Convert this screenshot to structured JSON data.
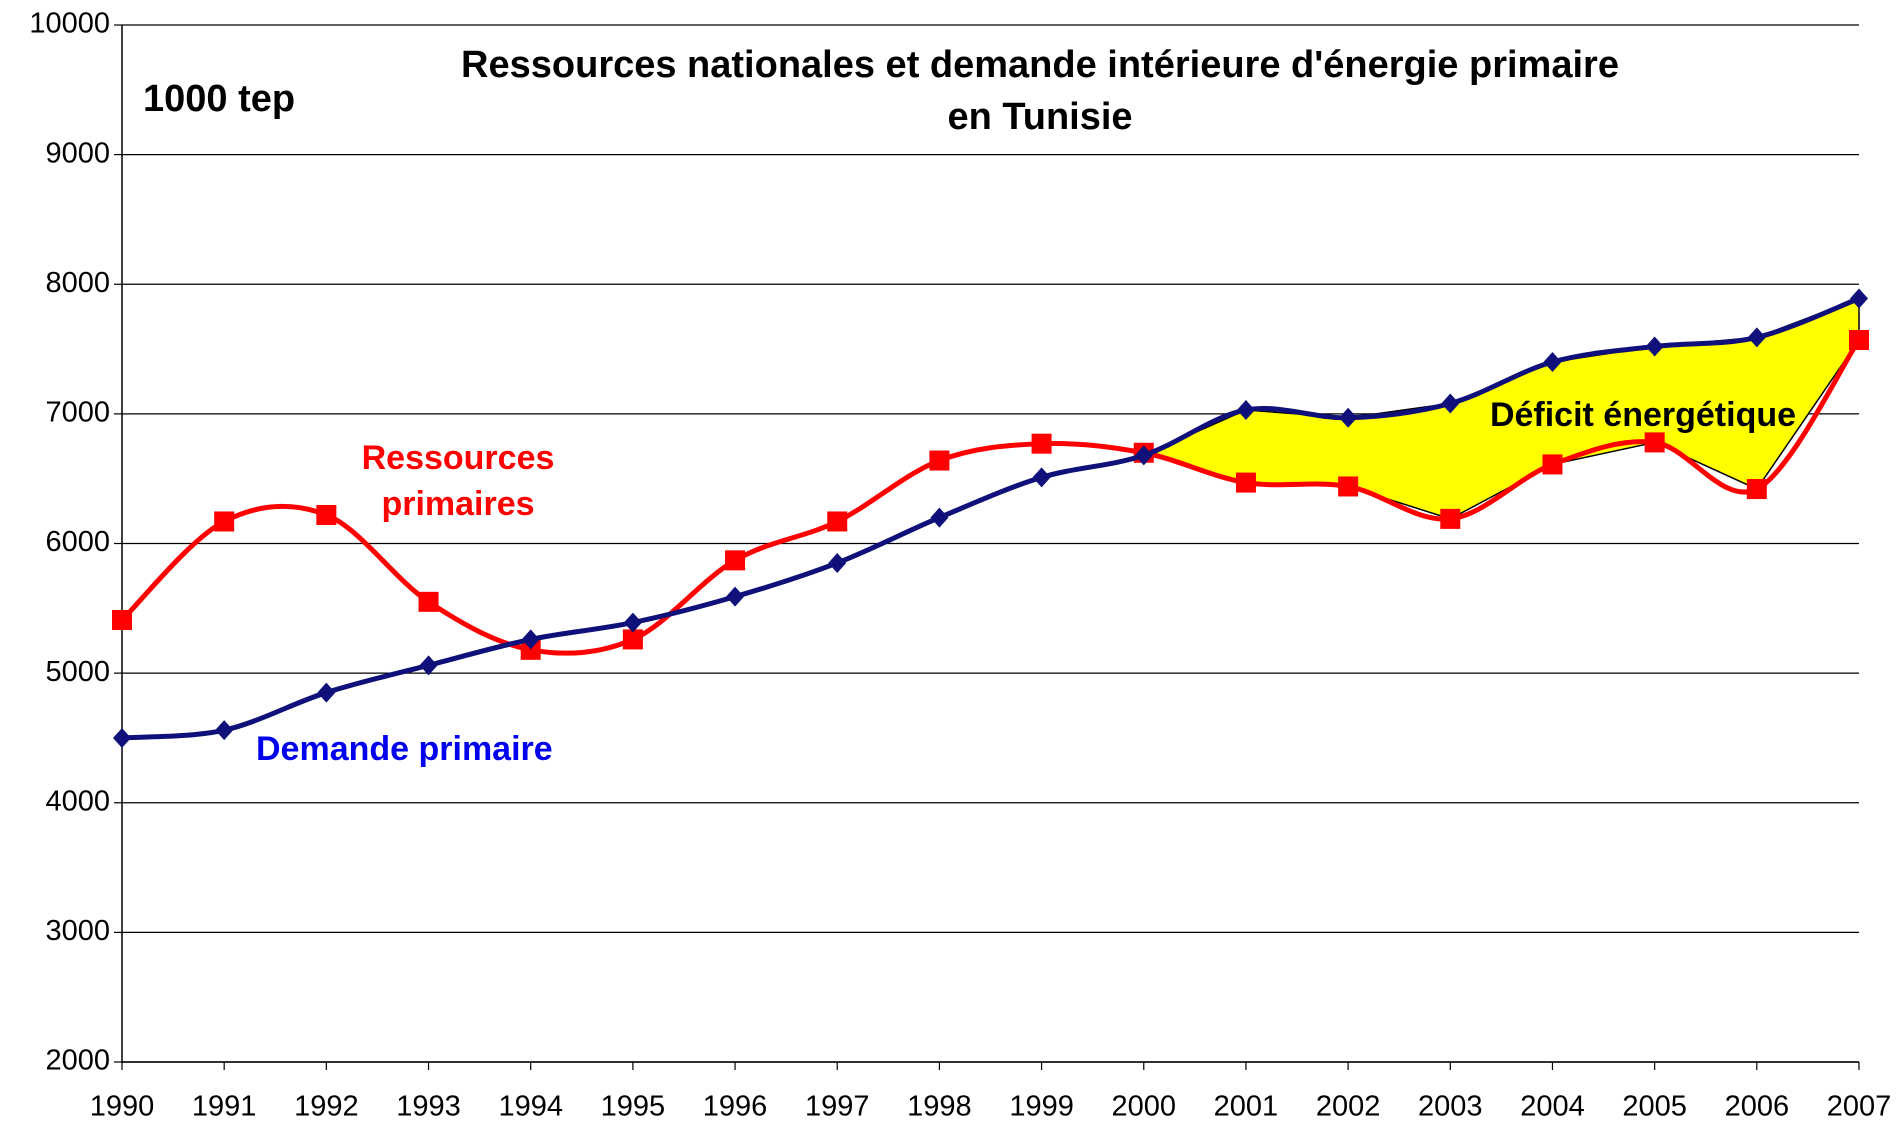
{
  "chart_data": {
    "type": "line",
    "title_lines": [
      "Ressources nationales et demande intérieure d'énergie primaire",
      "en Tunisie"
    ],
    "y_unit_label": "1000 tep",
    "x": [
      1990,
      1991,
      1992,
      1993,
      1994,
      1995,
      1996,
      1997,
      1998,
      1999,
      2000,
      2001,
      2002,
      2003,
      2004,
      2005,
      2006,
      2007
    ],
    "series": [
      {
        "name": "Demande primaire",
        "color": "#10107a",
        "label_color": "#0000ee",
        "marker": "diamond",
        "values": [
          4500,
          4560,
          4850,
          5060,
          5260,
          5390,
          5590,
          5850,
          6200,
          6510,
          6680,
          7030,
          6970,
          7080,
          7400,
          7520,
          7590,
          7890
        ]
      },
      {
        "name_lines": [
          "Ressources",
          "primaires"
        ],
        "color": "#ff0000",
        "label_color": "#ff0000",
        "marker": "square",
        "values": [
          5410,
          6170,
          6220,
          5550,
          5180,
          5260,
          5870,
          6170,
          6640,
          6770,
          6700,
          6470,
          6440,
          6190,
          6610,
          6780,
          6420,
          7570
        ]
      }
    ],
    "deficit": {
      "label": "Déficit énergétique",
      "color": "#ffff00",
      "from_index": 10
    },
    "xlim": [
      1990,
      2007
    ],
    "xticks": [
      1990,
      1991,
      1992,
      1993,
      1994,
      1995,
      1996,
      1997,
      1998,
      1999,
      2000,
      2001,
      2002,
      2003,
      2004,
      2005,
      2006,
      2007
    ],
    "ylim": [
      2000,
      10000
    ],
    "yticks": [
      2000,
      3000,
      4000,
      5000,
      6000,
      7000,
      8000,
      9000,
      10000
    ],
    "grid": true
  }
}
